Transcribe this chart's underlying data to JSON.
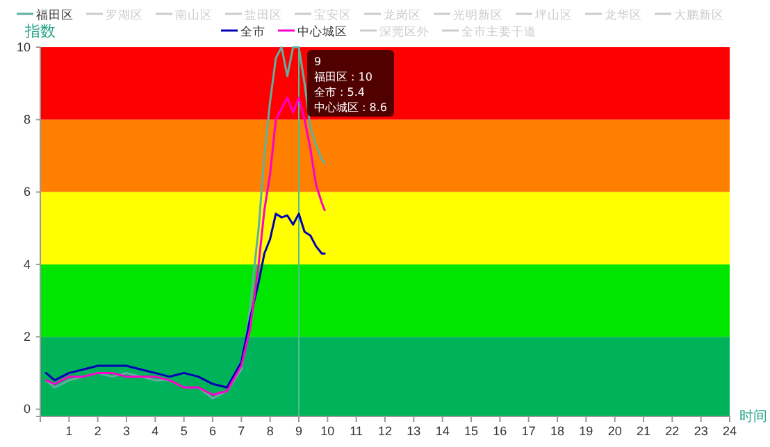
{
  "chart_data": {
    "type": "line",
    "xlabel": "时间",
    "ylabel": "指数",
    "xlim": [
      0,
      24
    ],
    "ylim": [
      -0.2,
      10
    ],
    "xticks": [
      {
        "value": 0,
        "label": null
      },
      1,
      2,
      3,
      4,
      5,
      6,
      7,
      8,
      9,
      10,
      11,
      12,
      13,
      14,
      15,
      16,
      17,
      18,
      19,
      20,
      21,
      22,
      23,
      24
    ],
    "yticks": [
      0,
      2,
      4,
      6,
      8,
      10
    ],
    "grid": false,
    "legend": "top",
    "marker": "none",
    "line_style": "solid",
    "x": [
      0.2,
      0.5,
      1,
      1.5,
      2,
      2.5,
      3,
      3.5,
      4,
      4.5,
      5,
      5.5,
      6,
      6.5,
      7,
      7.3,
      7.6,
      7.8,
      8.0,
      8.2,
      8.4,
      8.6,
      8.8,
      9.0,
      9.2,
      9.4,
      9.6,
      9.8,
      9.9
    ],
    "bands": [
      {
        "axis": "y",
        "from": -0.2,
        "to": 2,
        "color": "#00b35a"
      },
      {
        "axis": "y",
        "from": 2,
        "to": 4,
        "color": "#00e600"
      },
      {
        "axis": "y",
        "from": 4,
        "to": 6,
        "color": "#ffff00"
      },
      {
        "axis": "y",
        "from": 6,
        "to": 8,
        "color": "#ff7f00"
      },
      {
        "axis": "y",
        "from": 8,
        "to": 10,
        "color": "#ff0000"
      }
    ],
    "ref_lines": [
      {
        "axis": "x",
        "value": 9,
        "color": "#4fc08d"
      }
    ],
    "annotations": [
      "9",
      "福田区 : 10",
      "全市 : 5.4",
      "中心城区 : 8.6"
    ],
    "series": [
      {
        "name": "福田区",
        "color": "#5fb0a0",
        "values": [
          0.8,
          0.6,
          0.8,
          0.9,
          1.0,
          0.9,
          1.0,
          0.9,
          0.8,
          0.8,
          0.6,
          0.6,
          0.3,
          0.5,
          1.1,
          2.8,
          5.0,
          7.0,
          8.5,
          9.7,
          10,
          9.2,
          10,
          10,
          9.0,
          7.8,
          7.3,
          6.9,
          6.8
        ]
      },
      {
        "name": "罗湖区",
        "color": "#cccccc",
        "values": [
          null,
          null,
          null,
          null,
          null,
          null,
          null,
          null,
          null,
          null,
          null,
          null,
          null,
          null,
          null,
          null,
          null,
          null,
          null,
          null,
          null,
          null,
          null,
          null,
          null,
          null,
          null,
          null,
          null
        ]
      },
      {
        "name": "南山区",
        "color": "#cccccc",
        "values": [
          null,
          null,
          null,
          null,
          null,
          null,
          null,
          null,
          null,
          null,
          null,
          null,
          null,
          null,
          null,
          null,
          null,
          null,
          null,
          null,
          null,
          null,
          null,
          null,
          null,
          null,
          null,
          null,
          null
        ]
      },
      {
        "name": "盐田区",
        "color": "#cccccc",
        "values": [
          null,
          null,
          null,
          null,
          null,
          null,
          null,
          null,
          null,
          null,
          null,
          null,
          null,
          null,
          null,
          null,
          null,
          null,
          null,
          null,
          null,
          null,
          null,
          null,
          null,
          null,
          null,
          null,
          null
        ]
      },
      {
        "name": "宝安区",
        "color": "#cccccc",
        "values": [
          null,
          null,
          null,
          null,
          null,
          null,
          null,
          null,
          null,
          null,
          null,
          null,
          null,
          null,
          null,
          null,
          null,
          null,
          null,
          null,
          null,
          null,
          null,
          null,
          null,
          null,
          null,
          null,
          null
        ]
      },
      {
        "name": "龙岗区",
        "color": "#cccccc",
        "values": [
          null,
          null,
          null,
          null,
          null,
          null,
          null,
          null,
          null,
          null,
          null,
          null,
          null,
          null,
          null,
          null,
          null,
          null,
          null,
          null,
          null,
          null,
          null,
          null,
          null,
          null,
          null,
          null,
          null
        ]
      },
      {
        "name": "光明新区",
        "color": "#cccccc",
        "values": [
          null,
          null,
          null,
          null,
          null,
          null,
          null,
          null,
          null,
          null,
          null,
          null,
          null,
          null,
          null,
          null,
          null,
          null,
          null,
          null,
          null,
          null,
          null,
          null,
          null,
          null,
          null,
          null,
          null
        ]
      },
      {
        "name": "坪山区",
        "color": "#cccccc",
        "values": [
          null,
          null,
          null,
          null,
          null,
          null,
          null,
          null,
          null,
          null,
          null,
          null,
          null,
          null,
          null,
          null,
          null,
          null,
          null,
          null,
          null,
          null,
          null,
          null,
          null,
          null,
          null,
          null,
          null
        ]
      },
      {
        "name": "龙华区",
        "color": "#cccccc",
        "values": [
          null,
          null,
          null,
          null,
          null,
          null,
          null,
          null,
          null,
          null,
          null,
          null,
          null,
          null,
          null,
          null,
          null,
          null,
          null,
          null,
          null,
          null,
          null,
          null,
          null,
          null,
          null,
          null,
          null
        ]
      },
      {
        "name": "大鹏新区",
        "color": "#cccccc",
        "values": [
          null,
          null,
          null,
          null,
          null,
          null,
          null,
          null,
          null,
          null,
          null,
          null,
          null,
          null,
          null,
          null,
          null,
          null,
          null,
          null,
          null,
          null,
          null,
          null,
          null,
          null,
          null,
          null,
          null
        ]
      },
      {
        "name": "全市",
        "color": "#0000b4",
        "values": [
          1.0,
          0.8,
          1.0,
          1.1,
          1.2,
          1.2,
          1.2,
          1.1,
          1.0,
          0.9,
          1.0,
          0.9,
          0.7,
          0.6,
          1.3,
          2.5,
          3.5,
          4.3,
          4.7,
          5.4,
          5.3,
          5.35,
          5.1,
          5.4,
          4.9,
          4.8,
          4.5,
          4.3,
          4.3
        ]
      },
      {
        "name": "中心城区",
        "color": "#ff00cc",
        "values": [
          0.8,
          0.7,
          0.9,
          0.9,
          1.0,
          1.0,
          0.9,
          0.9,
          0.9,
          0.8,
          0.6,
          0.6,
          0.4,
          0.5,
          1.2,
          2.2,
          4.0,
          5.5,
          6.5,
          8.0,
          8.3,
          8.6,
          8.2,
          8.6,
          8.0,
          7.2,
          6.2,
          5.7,
          5.5
        ]
      },
      {
        "name": "深莞区外",
        "color": "#cccccc",
        "values": [
          null,
          null,
          null,
          null,
          null,
          null,
          null,
          null,
          null,
          null,
          null,
          null,
          null,
          null,
          null,
          null,
          null,
          null,
          null,
          null,
          null,
          null,
          null,
          null,
          null,
          null,
          null,
          null,
          null
        ]
      },
      {
        "name": "全市主要干道",
        "color": "#cccccc",
        "values": [
          null,
          null,
          null,
          null,
          null,
          null,
          null,
          null,
          null,
          null,
          null,
          null,
          null,
          null,
          null,
          null,
          null,
          null,
          null,
          null,
          null,
          null,
          null,
          null,
          null,
          null,
          null,
          null,
          null
        ]
      }
    ]
  }
}
